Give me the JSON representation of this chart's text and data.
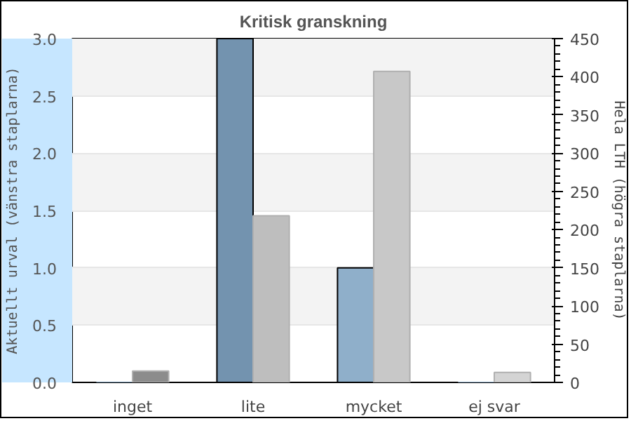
{
  "chart_data": {
    "type": "bar",
    "title": "Kritisk granskning",
    "ylabel": "Aktuellt urval (vänstra staplarna)",
    "y2label": "Hela LTH (högra staplarna)",
    "categories": [
      "inget",
      "lite",
      "mycket",
      "ej svar"
    ],
    "series": [
      {
        "values": [
          0,
          3,
          1,
          0
        ],
        "colors": [
          "#7393af",
          "#7393af",
          "#8fafca",
          "#8fafca"
        ]
      },
      {
        "values": [
          15,
          218,
          407,
          13
        ],
        "colors": [
          "#8c8c8c",
          "#bebebe",
          "#c8c8c8",
          "#d4d4d4"
        ],
        "axis": "y2"
      }
    ],
    "ylim": [
      0,
      3.0
    ],
    "yticks": [
      {
        "value": 0,
        "label": "0.0"
      },
      {
        "value": 0.5,
        "label": "0.5"
      },
      {
        "value": 1.0,
        "label": "1.0"
      },
      {
        "value": 1.5,
        "label": "1.5"
      },
      {
        "value": 2.0,
        "label": "2.0"
      },
      {
        "value": 2.5,
        "label": "2.5"
      },
      {
        "value": 3.0,
        "label": "3.0"
      }
    ],
    "y2lim": [
      0,
      450
    ],
    "y2ticks": [
      0,
      50,
      100,
      150,
      200,
      250,
      300,
      350,
      400,
      450
    ],
    "grid": "y"
  }
}
